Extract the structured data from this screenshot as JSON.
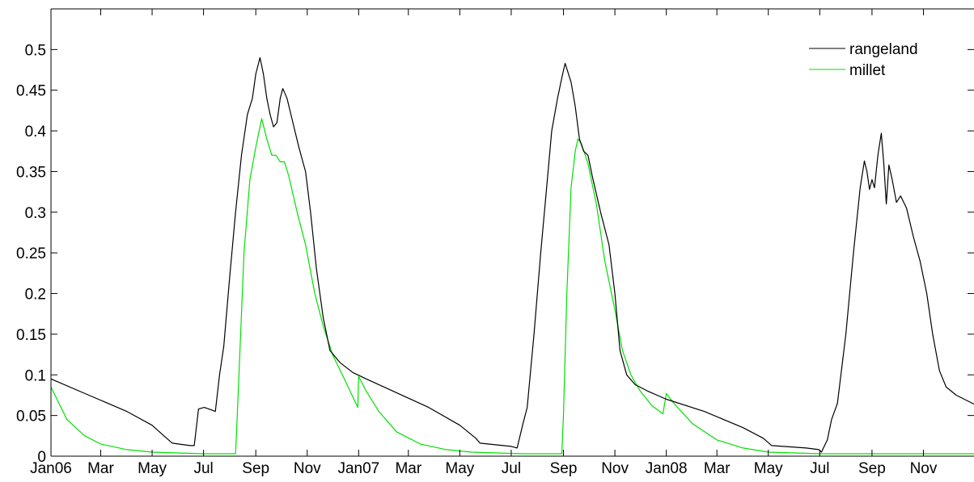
{
  "chart_data": {
    "type": "line",
    "title": "",
    "xlabel": "",
    "ylabel": "",
    "xlim": [
      "2006-01-01",
      "2008-12-31"
    ],
    "ylim": [
      0,
      0.55
    ],
    "yticks": [
      0,
      0.05,
      0.1,
      0.15,
      0.2,
      0.25,
      0.3,
      0.35,
      0.4,
      0.45,
      0.5
    ],
    "ytick_labels": [
      "0",
      "0.05",
      "0.1",
      "0.15",
      "0.2",
      "0.25",
      "0.3",
      "0.35",
      "0.4",
      "0.45",
      "0.5"
    ],
    "xticks": [
      {
        "date": "2006-01-01",
        "label": "Jan06"
      },
      {
        "date": "2006-03-01",
        "label": "Mar"
      },
      {
        "date": "2006-05-01",
        "label": "May"
      },
      {
        "date": "2006-07-01",
        "label": "Jul"
      },
      {
        "date": "2006-09-01",
        "label": "Sep"
      },
      {
        "date": "2006-11-01",
        "label": "Nov"
      },
      {
        "date": "2007-01-01",
        "label": "Jan07"
      },
      {
        "date": "2007-03-01",
        "label": "Mar"
      },
      {
        "date": "2007-05-01",
        "label": "May"
      },
      {
        "date": "2007-07-01",
        "label": "Jul"
      },
      {
        "date": "2007-09-01",
        "label": "Sep"
      },
      {
        "date": "2007-11-01",
        "label": "Nov"
      },
      {
        "date": "2008-01-01",
        "label": "Jan08"
      },
      {
        "date": "2008-03-01",
        "label": "Mar"
      },
      {
        "date": "2008-05-01",
        "label": "May"
      },
      {
        "date": "2008-07-01",
        "label": "Jul"
      },
      {
        "date": "2008-09-01",
        "label": "Sep"
      },
      {
        "date": "2008-11-01",
        "label": "Nov"
      }
    ],
    "grid": false,
    "legend": "top-right",
    "series": [
      {
        "name": "rangeland",
        "color": "#000000",
        "points": [
          [
            "2006-01-01",
            0.095
          ],
          [
            "2006-02-15",
            0.075
          ],
          [
            "2006-04-01",
            0.055
          ],
          [
            "2006-05-01",
            0.038
          ],
          [
            "2006-05-15",
            0.025
          ],
          [
            "2006-05-25",
            0.016
          ],
          [
            "2006-06-15",
            0.013
          ],
          [
            "2006-06-20",
            0.013
          ],
          [
            "2006-06-25",
            0.058
          ],
          [
            "2006-07-02",
            0.06
          ],
          [
            "2006-07-10",
            0.057
          ],
          [
            "2006-07-15",
            0.055
          ],
          [
            "2006-07-20",
            0.1
          ],
          [
            "2006-07-25",
            0.135
          ],
          [
            "2006-08-01",
            0.22
          ],
          [
            "2006-08-08",
            0.3
          ],
          [
            "2006-08-15",
            0.37
          ],
          [
            "2006-08-22",
            0.42
          ],
          [
            "2006-08-28",
            0.44
          ],
          [
            "2006-09-01",
            0.47
          ],
          [
            "2006-09-06",
            0.49
          ],
          [
            "2006-09-10",
            0.47
          ],
          [
            "2006-09-14",
            0.44
          ],
          [
            "2006-09-18",
            0.42
          ],
          [
            "2006-09-22",
            0.405
          ],
          [
            "2006-09-26",
            0.41
          ],
          [
            "2006-09-30",
            0.44
          ],
          [
            "2006-10-03",
            0.452
          ],
          [
            "2006-10-08",
            0.44
          ],
          [
            "2006-10-15",
            0.41
          ],
          [
            "2006-10-22",
            0.38
          ],
          [
            "2006-10-30",
            0.35
          ],
          [
            "2006-11-05",
            0.3
          ],
          [
            "2006-11-12",
            0.23
          ],
          [
            "2006-11-20",
            0.17
          ],
          [
            "2006-11-28",
            0.13
          ],
          [
            "2006-12-10",
            0.115
          ],
          [
            "2006-12-25",
            0.103
          ],
          [
            "2007-01-10",
            0.095
          ],
          [
            "2007-02-15",
            0.078
          ],
          [
            "2007-03-25",
            0.06
          ],
          [
            "2007-05-01",
            0.038
          ],
          [
            "2007-05-20",
            0.022
          ],
          [
            "2007-05-25",
            0.016
          ],
          [
            "2007-07-01",
            0.012
          ],
          [
            "2007-07-08",
            0.01
          ],
          [
            "2007-07-15",
            0.04
          ],
          [
            "2007-07-20",
            0.06
          ],
          [
            "2007-07-28",
            0.15
          ],
          [
            "2007-08-05",
            0.25
          ],
          [
            "2007-08-12",
            0.33
          ],
          [
            "2007-08-18",
            0.4
          ],
          [
            "2007-08-25",
            0.44
          ],
          [
            "2007-08-31",
            0.47
          ],
          [
            "2007-09-03",
            0.483
          ],
          [
            "2007-09-10",
            0.46
          ],
          [
            "2007-09-15",
            0.43
          ],
          [
            "2007-09-20",
            0.39
          ],
          [
            "2007-09-25",
            0.375
          ],
          [
            "2007-09-30",
            0.37
          ],
          [
            "2007-10-05",
            0.345
          ],
          [
            "2007-10-15",
            0.3
          ],
          [
            "2007-10-25",
            0.26
          ],
          [
            "2007-11-01",
            0.2
          ],
          [
            "2007-11-07",
            0.13
          ],
          [
            "2007-11-15",
            0.1
          ],
          [
            "2007-11-25",
            0.088
          ],
          [
            "2007-12-10",
            0.08
          ],
          [
            "2008-01-01",
            0.07
          ],
          [
            "2008-02-15",
            0.055
          ],
          [
            "2008-04-01",
            0.035
          ],
          [
            "2008-04-25",
            0.022
          ],
          [
            "2008-05-05",
            0.013
          ],
          [
            "2008-06-15",
            0.01
          ],
          [
            "2008-06-30",
            0.008
          ],
          [
            "2008-07-03",
            0.005
          ],
          [
            "2008-07-10",
            0.02
          ],
          [
            "2008-07-15",
            0.045
          ],
          [
            "2008-07-22",
            0.065
          ],
          [
            "2008-08-01",
            0.15
          ],
          [
            "2008-08-10",
            0.25
          ],
          [
            "2008-08-18",
            0.33
          ],
          [
            "2008-08-23",
            0.363
          ],
          [
            "2008-08-26",
            0.35
          ],
          [
            "2008-08-29",
            0.328
          ],
          [
            "2008-09-01",
            0.34
          ],
          [
            "2008-09-04",
            0.33
          ],
          [
            "2008-09-08",
            0.37
          ],
          [
            "2008-09-12",
            0.397
          ],
          [
            "2008-09-15",
            0.36
          ],
          [
            "2008-09-18",
            0.31
          ],
          [
            "2008-09-21",
            0.358
          ],
          [
            "2008-09-25",
            0.34
          ],
          [
            "2008-09-30",
            0.312
          ],
          [
            "2008-10-05",
            0.32
          ],
          [
            "2008-10-12",
            0.305
          ],
          [
            "2008-10-20",
            0.27
          ],
          [
            "2008-10-28",
            0.24
          ],
          [
            "2008-11-05",
            0.2
          ],
          [
            "2008-11-12",
            0.15
          ],
          [
            "2008-11-20",
            0.105
          ],
          [
            "2008-11-28",
            0.085
          ],
          [
            "2008-12-10",
            0.075
          ],
          [
            "2008-12-31",
            0.064
          ]
        ]
      },
      {
        "name": "millet",
        "color": "#00e000",
        "points": [
          [
            "2006-01-01",
            0.085
          ],
          [
            "2006-01-20",
            0.045
          ],
          [
            "2006-02-10",
            0.025
          ],
          [
            "2006-03-01",
            0.015
          ],
          [
            "2006-04-01",
            0.008
          ],
          [
            "2006-05-01",
            0.005
          ],
          [
            "2006-06-01",
            0.004
          ],
          [
            "2006-07-01",
            0.003
          ],
          [
            "2006-08-08",
            0.003
          ],
          [
            "2006-08-10",
            0.05
          ],
          [
            "2006-08-18",
            0.25
          ],
          [
            "2006-08-25",
            0.34
          ],
          [
            "2006-09-01",
            0.38
          ],
          [
            "2006-09-08",
            0.415
          ],
          [
            "2006-09-14",
            0.39
          ],
          [
            "2006-09-20",
            0.37
          ],
          [
            "2006-09-25",
            0.37
          ],
          [
            "2006-09-30",
            0.362
          ],
          [
            "2006-10-05",
            0.362
          ],
          [
            "2006-10-10",
            0.345
          ],
          [
            "2006-10-20",
            0.3
          ],
          [
            "2006-10-30",
            0.26
          ],
          [
            "2006-11-10",
            0.2
          ],
          [
            "2006-11-20",
            0.16
          ],
          [
            "2006-12-01",
            0.125
          ],
          [
            "2006-12-15",
            0.095
          ],
          [
            "2006-12-31",
            0.06
          ],
          [
            "2007-01-01",
            0.098
          ],
          [
            "2007-01-10",
            0.08
          ],
          [
            "2007-01-25",
            0.055
          ],
          [
            "2007-02-15",
            0.03
          ],
          [
            "2007-03-15",
            0.015
          ],
          [
            "2007-04-15",
            0.008
          ],
          [
            "2007-05-15",
            0.005
          ],
          [
            "2007-06-15",
            0.004
          ],
          [
            "2007-07-15",
            0.003
          ],
          [
            "2007-08-30",
            0.003
          ],
          [
            "2007-09-01",
            0.05
          ],
          [
            "2007-09-05",
            0.2
          ],
          [
            "2007-09-10",
            0.33
          ],
          [
            "2007-09-15",
            0.375
          ],
          [
            "2007-09-18",
            0.39
          ],
          [
            "2007-09-22",
            0.385
          ],
          [
            "2007-09-30",
            0.36
          ],
          [
            "2007-10-10",
            0.31
          ],
          [
            "2007-10-20",
            0.24
          ],
          [
            "2007-11-01",
            0.18
          ],
          [
            "2007-11-10",
            0.13
          ],
          [
            "2007-11-20",
            0.1
          ],
          [
            "2007-12-01",
            0.08
          ],
          [
            "2007-12-15",
            0.062
          ],
          [
            "2007-12-28",
            0.052
          ],
          [
            "2008-01-01",
            0.077
          ],
          [
            "2008-01-10",
            0.065
          ],
          [
            "2008-02-01",
            0.04
          ],
          [
            "2008-03-01",
            0.02
          ],
          [
            "2008-04-01",
            0.01
          ],
          [
            "2008-05-01",
            0.005
          ],
          [
            "2008-06-01",
            0.004
          ],
          [
            "2008-07-01",
            0.003
          ],
          [
            "2008-09-01",
            0.003
          ],
          [
            "2008-12-31",
            0.003
          ]
        ]
      }
    ]
  }
}
